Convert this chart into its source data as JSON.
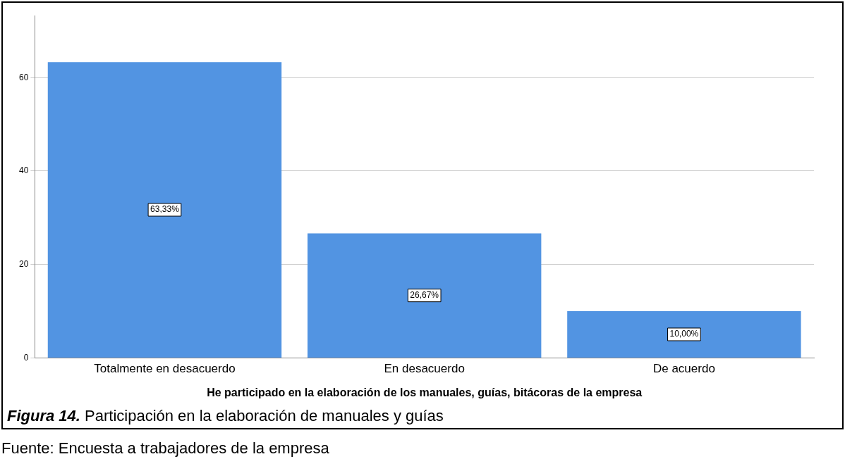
{
  "chart_data": {
    "type": "bar",
    "xlabel": "He participado en la elaboración de los manuales, guías, bitácoras de la empresa",
    "categories": [
      "Totalmente en desacuerdo",
      "En desacuerdo",
      "De acuerdo"
    ],
    "values": [
      63.33,
      26.67,
      10.0
    ],
    "value_labels": [
      "63,33%",
      "26,67%",
      "10,00%"
    ],
    "color": "#5294e2",
    "ylim": [
      0,
      73.3
    ],
    "yticks": [
      0,
      20,
      40,
      60
    ],
    "grid": "y",
    "legend": false,
    "annotations": [
      "Figura 14.",
      "Participación en la elaboración de manuales y guías",
      "Fuente: Encuesta a trabajadores de la empresa"
    ]
  }
}
